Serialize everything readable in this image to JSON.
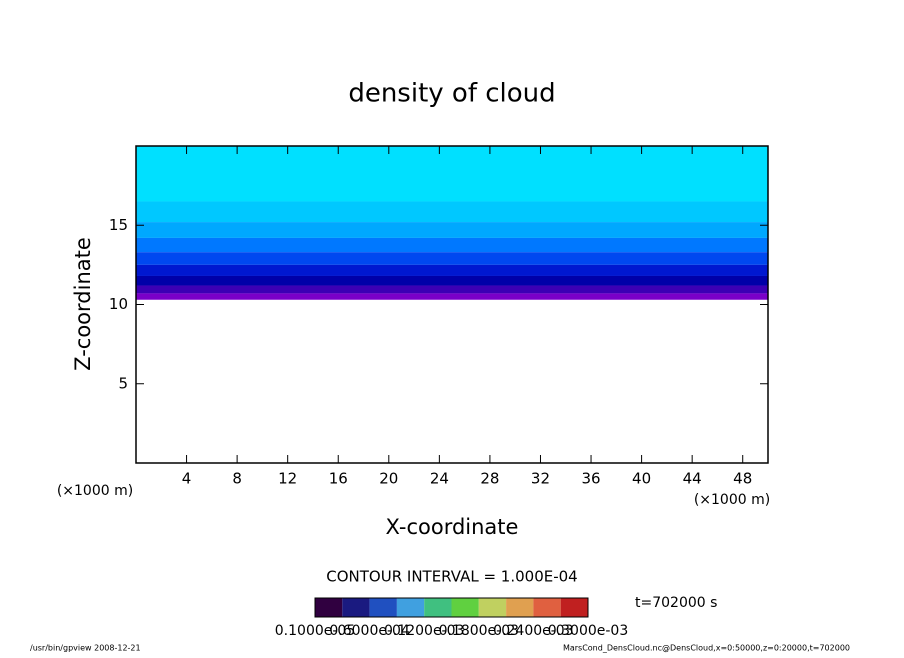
{
  "chart_data": {
    "type": "contour",
    "title": "density of cloud",
    "x_label": "X-coordinate",
    "y_label": "Z-coordinate",
    "x_unit": "(×1000 m)",
    "y_unit": "(×1000 m)",
    "xlim": [
      0,
      50
    ],
    "ylim": [
      0,
      20
    ],
    "xticks": [
      4,
      8,
      12,
      16,
      20,
      24,
      28,
      32,
      36,
      40,
      44,
      48
    ],
    "yticks": [
      5,
      10,
      15
    ],
    "bands": [
      {
        "z": [
          16.5,
          20
        ],
        "color": "#00e0ff"
      },
      {
        "z": [
          15.2,
          16.5
        ],
        "color": "#00c8ff"
      },
      {
        "z": [
          14.2,
          15.2
        ],
        "color": "#00a8ff"
      },
      {
        "z": [
          13.3,
          14.2
        ],
        "color": "#0078ff"
      },
      {
        "z": [
          12.5,
          13.3
        ],
        "color": "#0048f0"
      },
      {
        "z": [
          11.8,
          12.5
        ],
        "color": "#0018d0"
      },
      {
        "z": [
          11.2,
          11.8
        ],
        "color": "#0000a8"
      },
      {
        "z": [
          10.7,
          11.2
        ],
        "color": "#3c00b4"
      },
      {
        "z": [
          10.3,
          10.7
        ],
        "color": "#7a00c8"
      }
    ],
    "contour_interval": "CONTOUR INTERVAL = 1.000E-04",
    "time_label": "t=702000 s",
    "colorbar_colors": [
      "#300040",
      "#1a1a80",
      "#2050c0",
      "#40a0e0",
      "#40c080",
      "#60d040",
      "#c0d060",
      "#e0a050",
      "#e06040",
      "#c02020"
    ],
    "colorbar_labels": [
      "0.1000e-05",
      "0.6000e-04",
      "0.1200e-03",
      "0.1800e-03",
      "0.2400e-03",
      "0.3000e-03"
    ],
    "footer_left": "/usr/bin/gpview   2008-12-21",
    "footer_right": "MarsCond_DensCloud.nc@DensCloud,x=0:50000,z=0:20000,t=702000"
  }
}
